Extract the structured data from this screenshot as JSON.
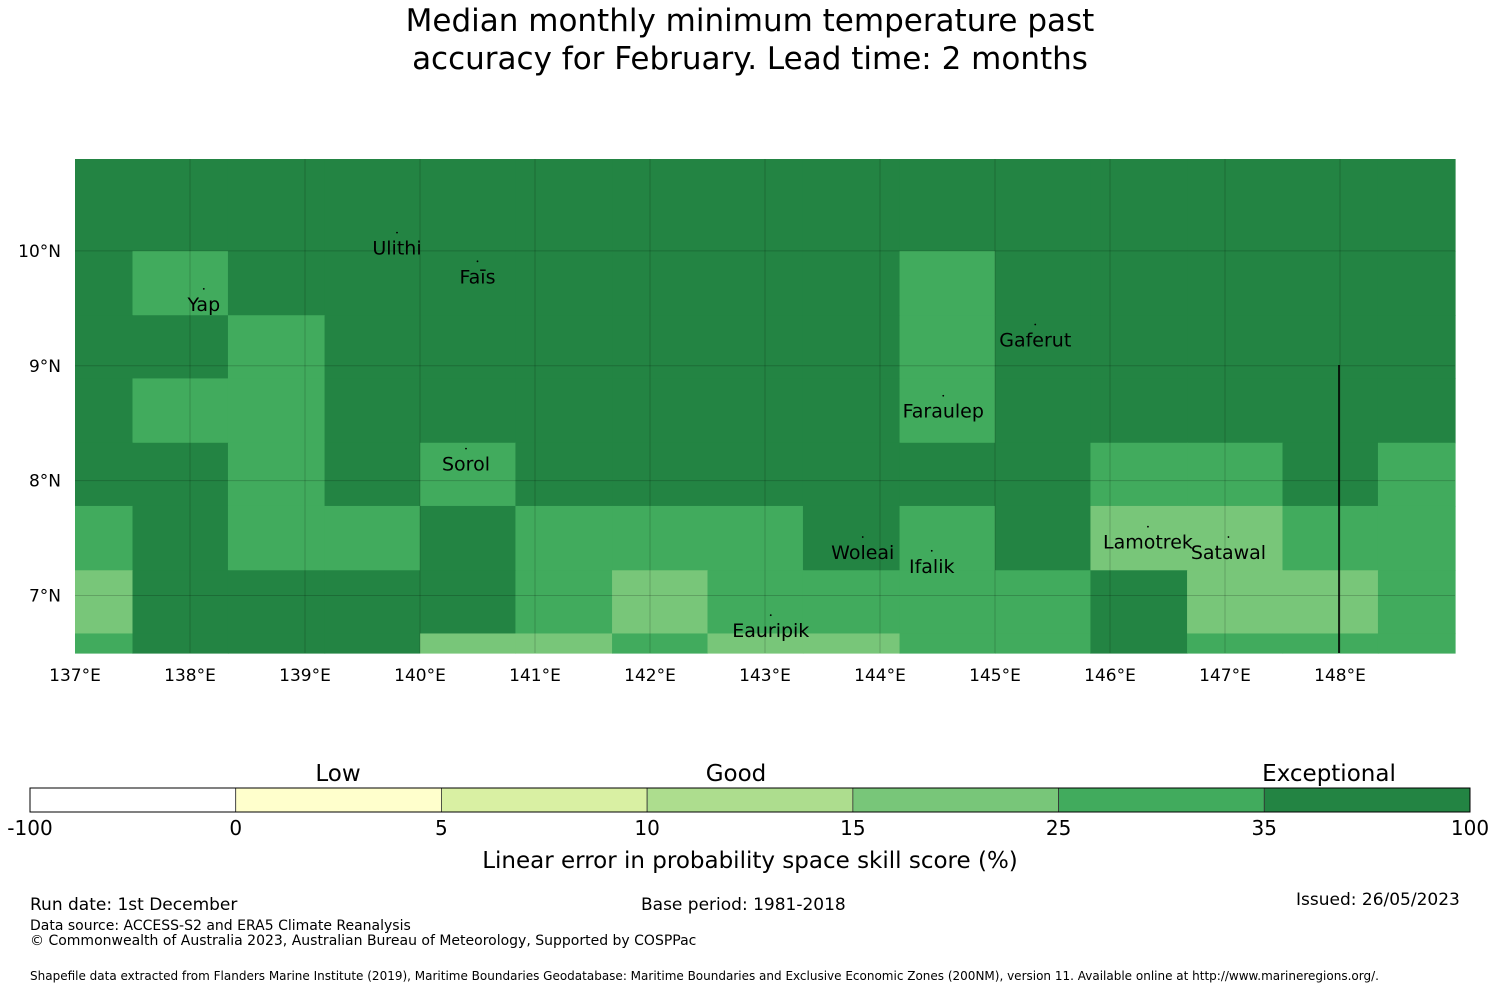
{
  "title": {
    "line1": "Median monthly minimum temperature past",
    "line2": "accuracy for February. Lead time: 2 months"
  },
  "map": {
    "lon_range": [
      137,
      149
    ],
    "lat_range": [
      6.5,
      10.8
    ],
    "lon_ticks": [
      137,
      138,
      139,
      140,
      141,
      142,
      143,
      144,
      145,
      146,
      147,
      148
    ],
    "lon_tick_labels": [
      "137°E",
      "138°E",
      "139°E",
      "140°E",
      "141°E",
      "142°E",
      "143°E",
      "144°E",
      "145°E",
      "146°E",
      "147°E",
      "148°E"
    ],
    "lat_ticks": [
      10,
      9,
      8,
      7
    ],
    "lat_tick_labels": [
      "10°N",
      "9°N",
      "8°N",
      "7°N"
    ],
    "grid_lon_edges": [
      137,
      137.5,
      138.33,
      139.17,
      140,
      140.83,
      141.67,
      142.5,
      143.33,
      144.17,
      145,
      145.83,
      146.67,
      147.5,
      148.33,
      149
    ],
    "grid_lat_edges": [
      10.8,
      10.0,
      9.44,
      8.89,
      8.33,
      7.78,
      7.22,
      6.67,
      6.5
    ],
    "cell_classes": [
      [
        6,
        6,
        6,
        6,
        6,
        6,
        6,
        6,
        6,
        6,
        6,
        6,
        6,
        6,
        6
      ],
      [
        6,
        5,
        6,
        6,
        6,
        6,
        6,
        6,
        6,
        5,
        6,
        6,
        6,
        6,
        6
      ],
      [
        6,
        6,
        5,
        6,
        6,
        6,
        6,
        6,
        6,
        5,
        6,
        6,
        6,
        6,
        6
      ],
      [
        6,
        5,
        5,
        6,
        6,
        6,
        6,
        6,
        6,
        5,
        6,
        6,
        6,
        6,
        6
      ],
      [
        6,
        6,
        5,
        6,
        5,
        6,
        6,
        6,
        6,
        6,
        6,
        5,
        5,
        6,
        5
      ],
      [
        5,
        6,
        5,
        5,
        6,
        5,
        5,
        5,
        6,
        5,
        6,
        4,
        4,
        5,
        5
      ],
      [
        4,
        6,
        6,
        6,
        6,
        5,
        4,
        5,
        5,
        5,
        5,
        6,
        4,
        4,
        5
      ],
      [
        5,
        6,
        6,
        6,
        4,
        4,
        5,
        4,
        4,
        5,
        5,
        6,
        5,
        5,
        5
      ]
    ],
    "islands": [
      {
        "name": "Ulithi",
        "lon": 139.8,
        "lat": 10.02
      },
      {
        "name": "Yap",
        "lon": 138.12,
        "lat": 9.53
      },
      {
        "name": "Faīs",
        "lon": 140.5,
        "lat": 9.77
      },
      {
        "name": "Gaferut",
        "lon": 145.35,
        "lat": 9.22
      },
      {
        "name": "Faraulep",
        "lon": 144.55,
        "lat": 8.6
      },
      {
        "name": "Sorol",
        "lon": 140.4,
        "lat": 8.14
      },
      {
        "name": "Woleai",
        "lon": 143.85,
        "lat": 7.37
      },
      {
        "name": "Ifalik",
        "lon": 144.45,
        "lat": 7.25
      },
      {
        "name": "Lamotrek",
        "lon": 146.33,
        "lat": 7.46
      },
      {
        "name": "Satawal",
        "lon": 147.03,
        "lat": 7.37
      },
      {
        "name": "Eauripik",
        "lon": 143.05,
        "lat": 6.69
      }
    ]
  },
  "legend": {
    "category_labels": [
      "Low",
      "Good",
      "Exceptional"
    ],
    "tick_labels": [
      "-100",
      "0",
      "5",
      "10",
      "15",
      "25",
      "35",
      "100"
    ],
    "colors": [
      "#ffffff",
      "#ffffcc",
      "#d9f0a3",
      "#addd8e",
      "#78c679",
      "#41ab5d",
      "#238443"
    ],
    "label": "Linear error in probability space skill score (%)"
  },
  "footer": {
    "run_date": "Run date: 1st December",
    "base_period": "Base period: 1981-2018",
    "issued": "Issued: 26/05/2023",
    "data_source": "Data source: ACCESS-S2 and ERA5 Climate Reanalysis",
    "copyright": "© Commonwealth of Australia 2023, Australian Bureau of Meteorology, Supported by COSPPac",
    "shapefile": "Shapefile data extracted from Flanders Marine Institute (2019), Maritime Boundaries Geodatabase: Maritime Boundaries and Exclusive Economic Zones (200NM), version 11. Available online at http://www.marineregions.org/."
  }
}
